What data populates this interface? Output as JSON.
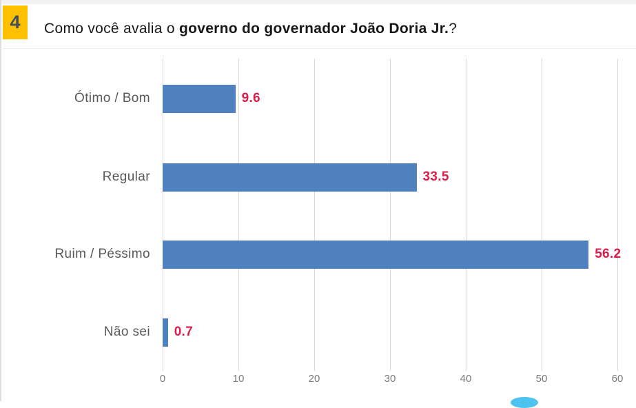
{
  "page": {
    "badge_number": "4",
    "title_prefix": "Como você avalia o ",
    "title_bold": "governo do governador João Doria Jr.",
    "title_suffix": "?"
  },
  "colors": {
    "bar": "#4E81BD",
    "value_label": "#D91E4B",
    "badge_bg": "#FFC000",
    "badge_text": "#3D4E63",
    "category_label": "#595959",
    "tick_label": "#7a7a7a",
    "gridline": "#d9d9d9",
    "accent_arc": "#4ec3f0"
  },
  "chart_data": {
    "type": "bar",
    "orientation": "horizontal",
    "title": "Como você avalia o governo do governador João Doria Jr.?",
    "categories": [
      "Ótimo / Bom",
      "Regular",
      "Ruim / Péssimo",
      "Não sei"
    ],
    "values": [
      9.6,
      33.5,
      56.2,
      0.7
    ],
    "value_labels": [
      "9.6",
      "33.5",
      "56.2",
      "0.7"
    ],
    "xlabel": "",
    "ylabel": "",
    "xlim": [
      0,
      60
    ],
    "xticks": [
      0,
      10,
      20,
      30,
      40,
      50,
      60
    ],
    "grid": "vertical-only",
    "legend": false,
    "value_label_position": "right-of-bar"
  }
}
